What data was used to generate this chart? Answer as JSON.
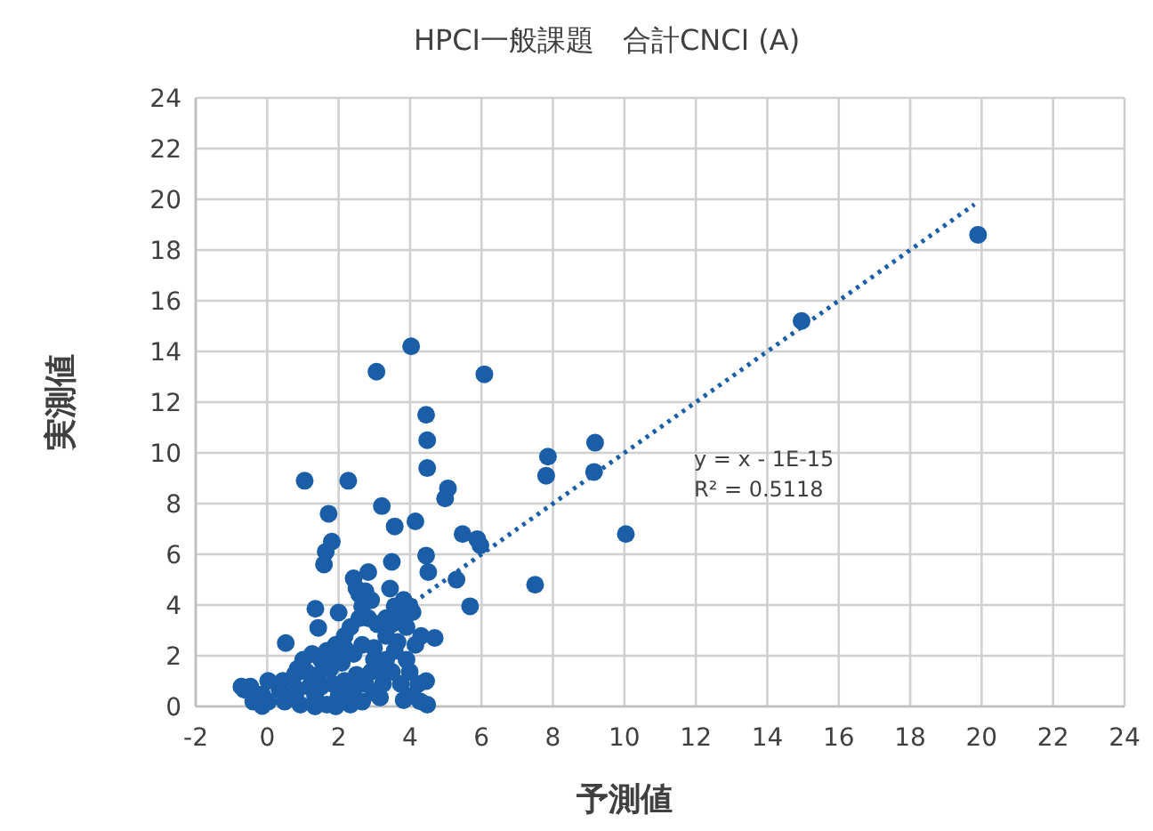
{
  "chart_data": {
    "type": "scatter",
    "title": "HPCI一般課題　合計CNCI (A)",
    "xlabel": "予測値",
    "ylabel": "実測値",
    "xlim": [
      -2,
      24
    ],
    "ylim": [
      0,
      24
    ],
    "xticks": [
      -2,
      0,
      2,
      4,
      6,
      8,
      10,
      12,
      14,
      16,
      18,
      20,
      22,
      24
    ],
    "yticks": [
      0,
      2,
      4,
      6,
      8,
      10,
      12,
      14,
      16,
      18,
      20,
      22,
      24
    ],
    "grid": true,
    "series": [
      {
        "marker": "circle",
        "color": "#1a5ea8",
        "x": [
          4.45,
          4.48,
          4.48,
          1.05,
          2.27,
          5.06,
          4.98,
          3.21,
          1.72,
          3.57,
          4.15,
          1.81,
          1.64,
          1.59,
          5.47,
          5.88,
          5.97,
          4.45,
          3.49,
          4.51,
          2.83,
          2.42,
          5.3,
          3.44,
          2.5,
          5.68,
          1.35,
          2.0,
          1.43,
          0.52,
          3.82,
          4.69,
          3.16,
          4.28,
          4.45,
          3.82,
          4.03,
          3.06,
          6.08,
          7.86,
          7.81,
          9.18,
          9.15,
          10.04,
          7.5,
          14.96,
          19.9,
          -0.47,
          -0.39,
          0.03,
          0.03,
          0.44,
          0.49,
          0.85,
          0.93,
          1.34,
          1.67,
          2.0,
          2.33,
          2.66,
          2.99,
          3.24,
          3.49,
          3.74,
          3.99,
          3.9,
          4.31,
          4.15,
          3.65,
          3.33,
          3.08,
          2.83,
          2.66,
          2.58,
          2.75,
          2.91,
          2.33,
          2.17,
          1.92,
          1.67,
          1.51,
          1.26,
          1.01,
          0.85,
          0.77,
          1.1,
          1.43,
          1.76,
          2.09,
          2.42,
          2.66,
          2.99,
          3.33,
          3.57,
          3.9,
          3.74,
          3.49,
          4.07,
          3.24,
          2.91,
          2.5,
          2.17,
          1.84,
          1.51,
          1.18,
          0.35,
          -0.14,
          0.68,
          1.34,
          1.92,
          2.42,
          2.75,
          2.99,
          4.23,
          4.07,
          4.48,
          -0.14,
          -0.64,
          -0.72,
          3.99,
          3.57,
          3.33,
          2.58,
          2.17,
          1.84
        ],
        "values": [
          11.5,
          10.5,
          9.4,
          8.9,
          8.9,
          8.6,
          8.2,
          7.9,
          7.6,
          7.1,
          7.3,
          6.5,
          6.1,
          5.6,
          6.8,
          6.6,
          6.35,
          5.95,
          5.7,
          5.3,
          5.3,
          5.05,
          5.0,
          4.65,
          4.65,
          3.95,
          3.85,
          3.7,
          3.1,
          2.5,
          4.2,
          2.7,
          0.35,
          0.2,
          1.0,
          0.25,
          14.2,
          13.2,
          13.1,
          9.85,
          9.1,
          10.4,
          9.25,
          6.8,
          4.8,
          15.2,
          18.6,
          0.78,
          0.19,
          1.01,
          0.19,
          1.01,
          0.19,
          0.66,
          0.07,
          0.42,
          0.07,
          0.42,
          0.07,
          0.19,
          0.54,
          0.89,
          1.37,
          0.89,
          1.37,
          1.84,
          2.78,
          2.43,
          2.54,
          2.78,
          3.25,
          3.48,
          3.95,
          4.42,
          4.54,
          4.19,
          3.13,
          2.78,
          2.43,
          2.19,
          1.84,
          2.07,
          1.84,
          1.48,
          1.25,
          1.37,
          1.25,
          1.48,
          1.72,
          2.07,
          2.43,
          2.31,
          1.84,
          2.19,
          3.13,
          3.6,
          3.25,
          3.72,
          1.37,
          1.37,
          1.25,
          1.01,
          0.89,
          0.78,
          0.78,
          0.66,
          0.47,
          0.42,
          0.0,
          0.0,
          0.66,
          0.89,
          1.84,
          0.89,
          0.42,
          0.07,
          0.02,
          0.66,
          0.78,
          3.95,
          3.95,
          3.48,
          3.48,
          2.31,
          1.84
        ]
      },
      {
        "type": "line",
        "line_style": "dotted",
        "color": "#1a5ea8",
        "x": [
          4.1,
          19.8
        ],
        "values": [
          4.1,
          19.8
        ]
      }
    ],
    "annotations": [
      "y = x - 1E-15",
      "R² = 0.5118"
    ]
  }
}
